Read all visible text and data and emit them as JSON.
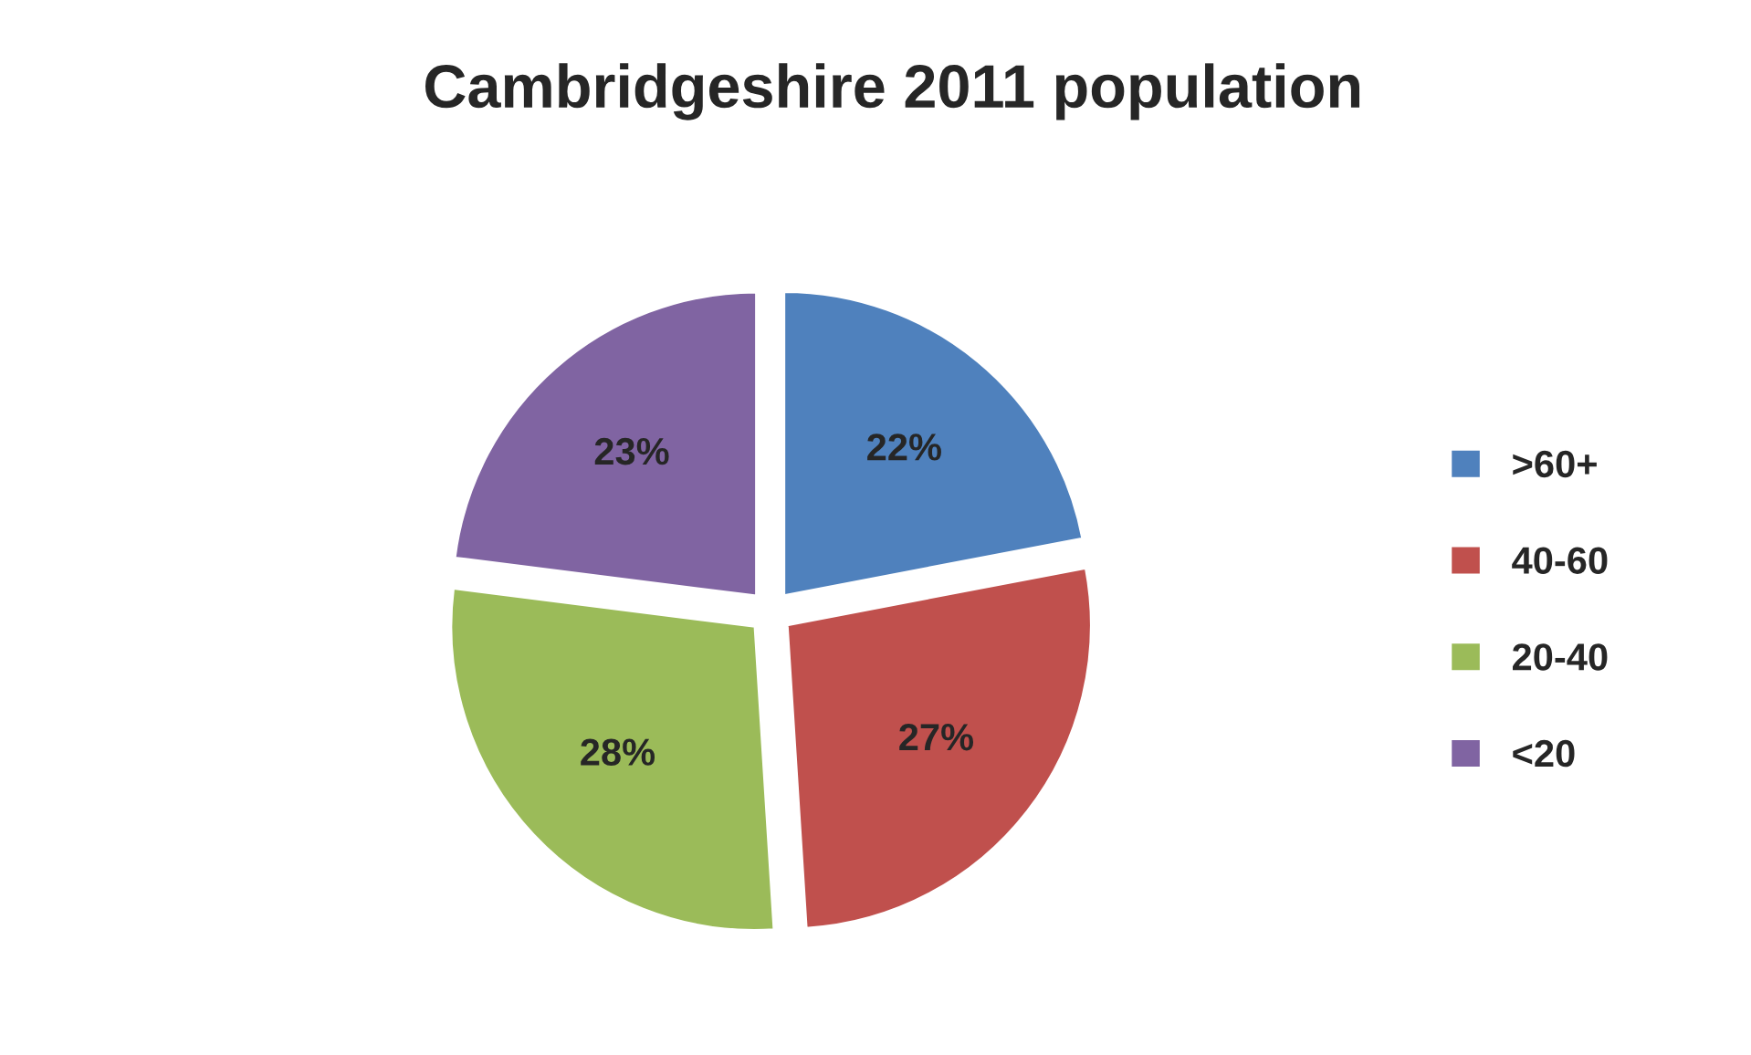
{
  "chart_data": {
    "type": "pie",
    "title": "Cambridgeshire 2011 population",
    "categories": [
      ">60+",
      "40-60",
      "20-40",
      "<20"
    ],
    "values": [
      22,
      27,
      28,
      23
    ],
    "colors": [
      "#4f81bd",
      "#c0504d",
      "#9bbb59",
      "#8064a2"
    ],
    "value_labels": [
      "22%",
      "27%",
      "28%",
      "23%"
    ],
    "legend": "right"
  }
}
